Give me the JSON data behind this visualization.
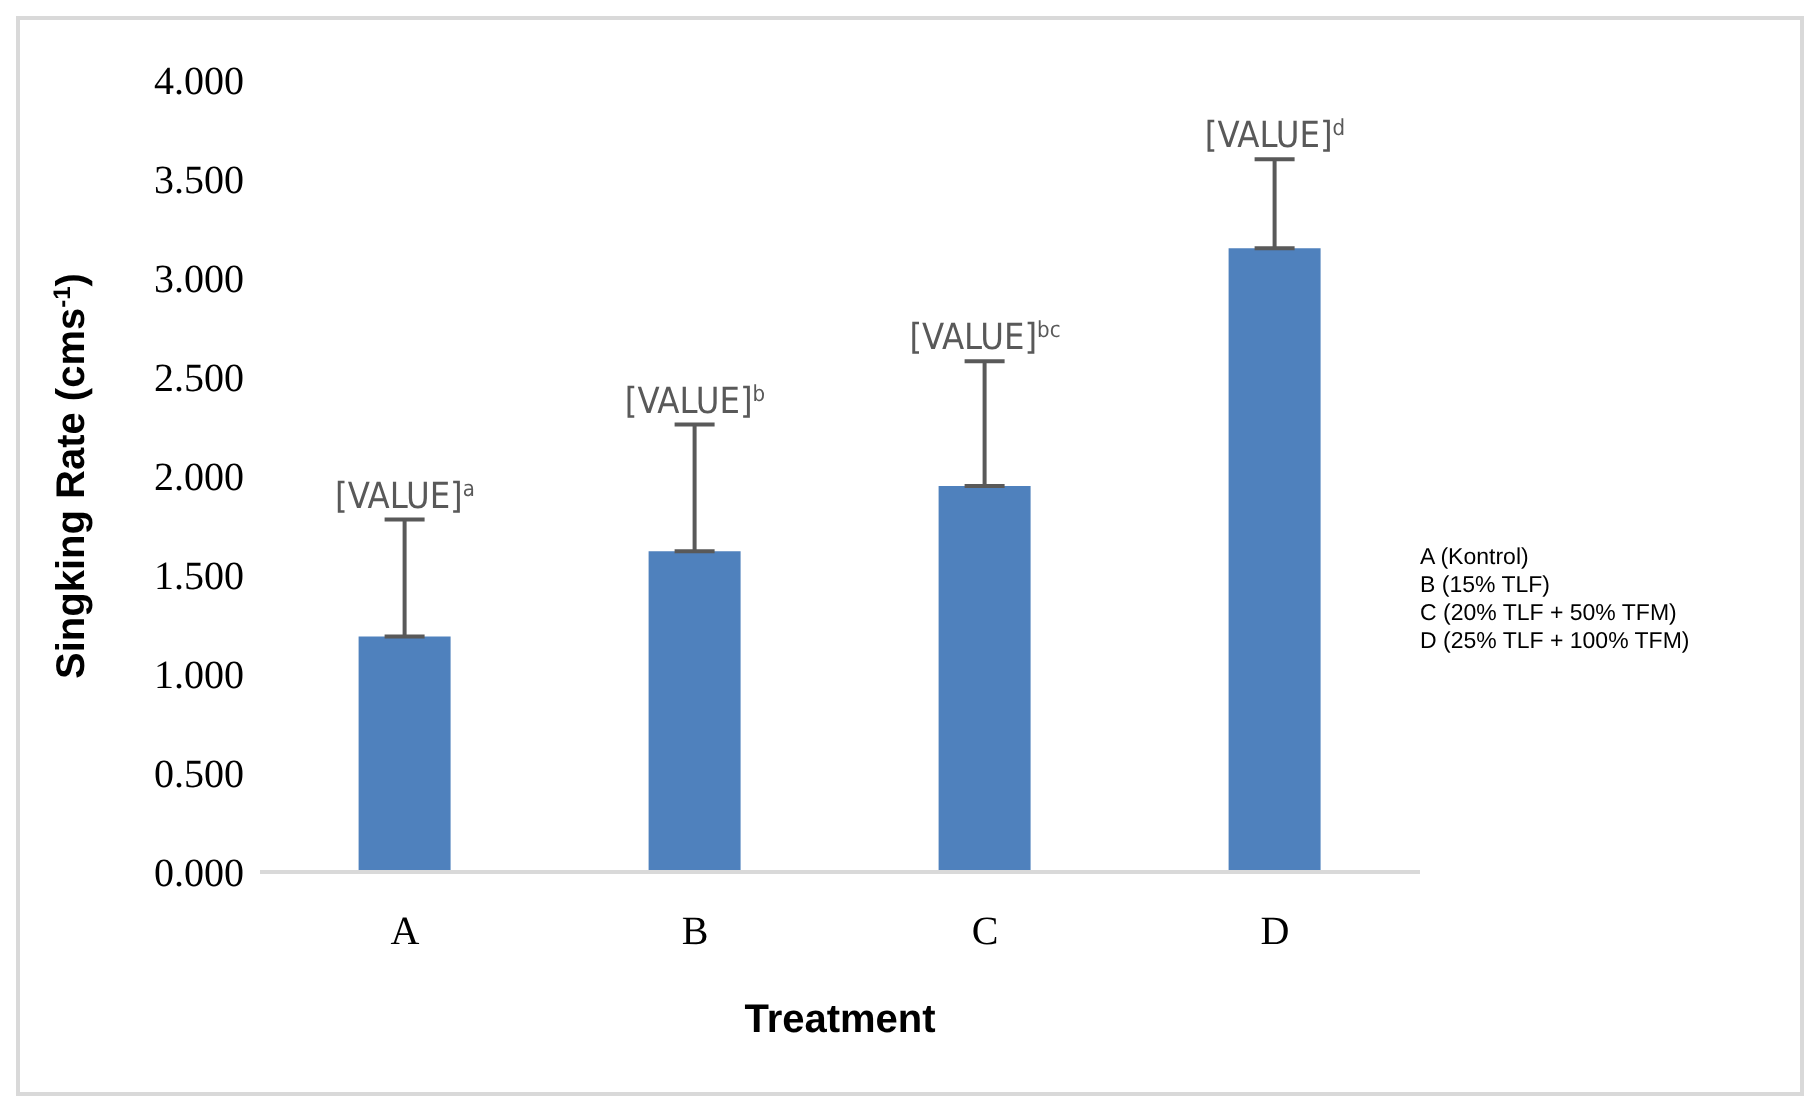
{
  "chart_data": {
    "type": "bar",
    "xlabel": "Treatment",
    "ylabel": "Singking Rate (cms$^{-1}$)",
    "categories": [
      "A",
      "B",
      "C",
      "D"
    ],
    "values": [
      1.19,
      1.62,
      1.95,
      3.15
    ],
    "color": "#4f81bd",
    "errors": [
      [
        1.19,
        1.78
      ],
      [
        1.62,
        2.26
      ],
      [
        1.95,
        2.58
      ],
      [
        3.15,
        3.6
      ]
    ],
    "ylim": [
      0,
      4
    ],
    "yticks": [
      {
        "value": 0,
        "label": "0.000"
      },
      {
        "value": 0.5,
        "label": "0.500"
      },
      {
        "value": 1,
        "label": "1.000"
      },
      {
        "value": 1.5,
        "label": "1.500"
      },
      {
        "value": 2,
        "label": "2.000"
      },
      {
        "value": 2.5,
        "label": "2.500"
      },
      {
        "value": 3,
        "label": "3.000"
      },
      {
        "value": 3.5,
        "label": "3.500"
      },
      {
        "value": 4,
        "label": "4.000"
      }
    ],
    "grid": false,
    "legend": false,
    "annotations": [
      {
        "text": "[VALUE]$^{a}$",
        "x": "A",
        "y": 1.78
      },
      {
        "text": "[VALUE]$^{b}$",
        "x": "B",
        "y": 2.26
      },
      {
        "text": "[VALUE]$^{bc}$",
        "x": "C",
        "y": 2.58
      },
      {
        "text": "[VALUE]$^{d}$",
        "x": "D",
        "y": 3.6
      },
      "A (Kontrol)",
      "B (15% TLF)",
      "C (20% TLF + 50% TFM)",
      "D (25% TLF + 100% TFM)"
    ]
  }
}
